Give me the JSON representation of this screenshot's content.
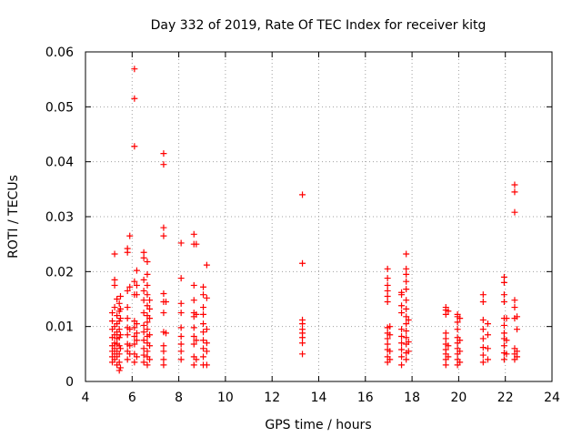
{
  "chart_data": {
    "type": "scatter",
    "title": "Day 332 of 2019, Rate Of TEC Index for receiver kitg",
    "xlabel": "GPS time / hours",
    "ylabel": "ROTI / TECUs",
    "xlim": [
      4,
      24
    ],
    "ylim": [
      0,
      0.06
    ],
    "x_ticks": [
      "4",
      "6",
      "8",
      "10",
      "12",
      "14",
      "16",
      "18",
      "20",
      "22",
      "24"
    ],
    "y_ticks": [
      "0",
      "0.01",
      "0.02",
      "0.03",
      "0.04",
      "0.05",
      "0.06"
    ],
    "grid": true,
    "marker": "+",
    "color": "#ff0000",
    "series": [
      {
        "name": "ROTI",
        "points": [
          [
            5.15,
            0.0035
          ],
          [
            5.15,
            0.0045
          ],
          [
            5.15,
            0.0055
          ],
          [
            5.15,
            0.0065
          ],
          [
            5.15,
            0.008
          ],
          [
            5.15,
            0.0095
          ],
          [
            5.15,
            0.011
          ],
          [
            5.15,
            0.0125
          ],
          [
            5.25,
            0.004
          ],
          [
            5.25,
            0.005
          ],
          [
            5.25,
            0.006
          ],
          [
            5.25,
            0.007
          ],
          [
            5.25,
            0.0085
          ],
          [
            5.25,
            0.01
          ],
          [
            5.25,
            0.0135
          ],
          [
            5.25,
            0.0175
          ],
          [
            5.25,
            0.0185
          ],
          [
            5.25,
            0.0232
          ],
          [
            5.35,
            0.003
          ],
          [
            5.35,
            0.0045
          ],
          [
            5.35,
            0.0055
          ],
          [
            5.35,
            0.0068
          ],
          [
            5.35,
            0.0078
          ],
          [
            5.35,
            0.009
          ],
          [
            5.35,
            0.0105
          ],
          [
            5.35,
            0.012
          ],
          [
            5.35,
            0.015
          ],
          [
            5.45,
            0.002
          ],
          [
            5.45,
            0.0035
          ],
          [
            5.45,
            0.005
          ],
          [
            5.45,
            0.0065
          ],
          [
            5.45,
            0.008
          ],
          [
            5.45,
            0.0095
          ],
          [
            5.45,
            0.011
          ],
          [
            5.45,
            0.0128
          ],
          [
            5.45,
            0.0142
          ],
          [
            5.5,
            0.0025
          ],
          [
            5.5,
            0.006
          ],
          [
            5.5,
            0.0085
          ],
          [
            5.5,
            0.0115
          ],
          [
            5.5,
            0.0132
          ],
          [
            5.5,
            0.0155
          ],
          [
            5.8,
            0.004
          ],
          [
            5.8,
            0.0055
          ],
          [
            5.8,
            0.0068
          ],
          [
            5.8,
            0.0085
          ],
          [
            5.8,
            0.0098
          ],
          [
            5.8,
            0.0115
          ],
          [
            5.8,
            0.0135
          ],
          [
            5.8,
            0.0165
          ],
          [
            5.8,
            0.0235
          ],
          [
            5.8,
            0.0242
          ],
          [
            5.9,
            0.005
          ],
          [
            5.9,
            0.0065
          ],
          [
            5.9,
            0.0095
          ],
          [
            5.9,
            0.0172
          ],
          [
            5.9,
            0.0265
          ],
          [
            6.1,
            0.0035
          ],
          [
            6.1,
            0.005
          ],
          [
            6.1,
            0.0068
          ],
          [
            6.1,
            0.0082
          ],
          [
            6.1,
            0.0098
          ],
          [
            6.1,
            0.011
          ],
          [
            6.1,
            0.0158
          ],
          [
            6.1,
            0.0182
          ],
          [
            6.1,
            0.0428
          ],
          [
            6.1,
            0.0515
          ],
          [
            6.1,
            0.0569
          ],
          [
            6.2,
            0.0045
          ],
          [
            6.2,
            0.0075
          ],
          [
            6.2,
            0.0088
          ],
          [
            6.2,
            0.0105
          ],
          [
            6.2,
            0.0158
          ],
          [
            6.2,
            0.0175
          ],
          [
            6.2,
            0.0202
          ],
          [
            6.5,
            0.0035
          ],
          [
            6.5,
            0.0048
          ],
          [
            6.5,
            0.006
          ],
          [
            6.5,
            0.0075
          ],
          [
            6.5,
            0.009
          ],
          [
            6.5,
            0.0102
          ],
          [
            6.5,
            0.0125
          ],
          [
            6.5,
            0.0148
          ],
          [
            6.5,
            0.0165
          ],
          [
            6.5,
            0.0185
          ],
          [
            6.5,
            0.0225
          ],
          [
            6.5,
            0.0235
          ],
          [
            6.65,
            0.003
          ],
          [
            6.65,
            0.0045
          ],
          [
            6.65,
            0.0055
          ],
          [
            6.65,
            0.007
          ],
          [
            6.65,
            0.0082
          ],
          [
            6.65,
            0.0095
          ],
          [
            6.65,
            0.0108
          ],
          [
            6.65,
            0.012
          ],
          [
            6.65,
            0.0138
          ],
          [
            6.65,
            0.0158
          ],
          [
            6.65,
            0.0175
          ],
          [
            6.65,
            0.0195
          ],
          [
            6.65,
            0.0218
          ],
          [
            6.75,
            0.004
          ],
          [
            6.75,
            0.0065
          ],
          [
            6.75,
            0.0085
          ],
          [
            6.75,
            0.0115
          ],
          [
            6.75,
            0.0132
          ],
          [
            6.75,
            0.0148
          ],
          [
            7.35,
            0.003
          ],
          [
            7.35,
            0.004
          ],
          [
            7.35,
            0.0055
          ],
          [
            7.35,
            0.0065
          ],
          [
            7.35,
            0.009
          ],
          [
            7.35,
            0.0125
          ],
          [
            7.35,
            0.0145
          ],
          [
            7.35,
            0.016
          ],
          [
            7.35,
            0.0265
          ],
          [
            7.35,
            0.028
          ],
          [
            7.35,
            0.0395
          ],
          [
            7.35,
            0.0415
          ],
          [
            7.45,
            0.0088
          ],
          [
            7.45,
            0.0145
          ],
          [
            8.1,
            0.004
          ],
          [
            8.1,
            0.0055
          ],
          [
            8.1,
            0.0068
          ],
          [
            8.1,
            0.0082
          ],
          [
            8.1,
            0.0098
          ],
          [
            8.1,
            0.0125
          ],
          [
            8.1,
            0.0142
          ],
          [
            8.1,
            0.0188
          ],
          [
            8.1,
            0.0252
          ],
          [
            8.65,
            0.003
          ],
          [
            8.65,
            0.0045
          ],
          [
            8.65,
            0.0068
          ],
          [
            8.65,
            0.0082
          ],
          [
            8.65,
            0.0098
          ],
          [
            8.65,
            0.0118
          ],
          [
            8.65,
            0.0125
          ],
          [
            8.65,
            0.0148
          ],
          [
            8.65,
            0.0175
          ],
          [
            8.65,
            0.025
          ],
          [
            8.65,
            0.0268
          ],
          [
            8.75,
            0.004
          ],
          [
            8.75,
            0.0075
          ],
          [
            8.75,
            0.0122
          ],
          [
            8.75,
            0.025
          ],
          [
            9.05,
            0.003
          ],
          [
            9.05,
            0.0045
          ],
          [
            9.05,
            0.006
          ],
          [
            9.05,
            0.0075
          ],
          [
            9.05,
            0.009
          ],
          [
            9.05,
            0.0105
          ],
          [
            9.05,
            0.0122
          ],
          [
            9.05,
            0.0135
          ],
          [
            9.05,
            0.0158
          ],
          [
            9.05,
            0.0172
          ],
          [
            9.2,
            0.003
          ],
          [
            9.2,
            0.0055
          ],
          [
            9.2,
            0.007
          ],
          [
            9.2,
            0.0095
          ],
          [
            9.2,
            0.0152
          ],
          [
            9.2,
            0.0212
          ],
          [
            13.3,
            0.005
          ],
          [
            13.3,
            0.007
          ],
          [
            13.3,
            0.008
          ],
          [
            13.3,
            0.0088
          ],
          [
            13.3,
            0.0095
          ],
          [
            13.3,
            0.0105
          ],
          [
            13.3,
            0.0112
          ],
          [
            13.3,
            0.0215
          ],
          [
            13.3,
            0.034
          ],
          [
            16.95,
            0.0035
          ],
          [
            16.95,
            0.0045
          ],
          [
            16.95,
            0.0058
          ],
          [
            16.95,
            0.0068
          ],
          [
            16.95,
            0.0078
          ],
          [
            16.95,
            0.0088
          ],
          [
            16.95,
            0.0098
          ],
          [
            16.95,
            0.0145
          ],
          [
            16.95,
            0.0155
          ],
          [
            16.95,
            0.0165
          ],
          [
            16.95,
            0.0175
          ],
          [
            16.95,
            0.0188
          ],
          [
            16.95,
            0.0205
          ],
          [
            17.05,
            0.004
          ],
          [
            17.05,
            0.0055
          ],
          [
            17.05,
            0.0085
          ],
          [
            17.05,
            0.01
          ],
          [
            17.55,
            0.003
          ],
          [
            17.55,
            0.0045
          ],
          [
            17.55,
            0.0058
          ],
          [
            17.55,
            0.007
          ],
          [
            17.55,
            0.0082
          ],
          [
            17.55,
            0.0095
          ],
          [
            17.55,
            0.0125
          ],
          [
            17.55,
            0.0138
          ],
          [
            17.55,
            0.0158
          ],
          [
            17.55,
            0.0162
          ],
          [
            17.75,
            0.004
          ],
          [
            17.75,
            0.0052
          ],
          [
            17.75,
            0.0068
          ],
          [
            17.75,
            0.008
          ],
          [
            17.75,
            0.0092
          ],
          [
            17.75,
            0.0105
          ],
          [
            17.75,
            0.0118
          ],
          [
            17.75,
            0.0132
          ],
          [
            17.75,
            0.0148
          ],
          [
            17.75,
            0.0168
          ],
          [
            17.75,
            0.0182
          ],
          [
            17.75,
            0.0195
          ],
          [
            17.75,
            0.0205
          ],
          [
            17.75,
            0.0232
          ],
          [
            17.85,
            0.0055
          ],
          [
            17.85,
            0.0072
          ],
          [
            17.85,
            0.0112
          ],
          [
            19.45,
            0.003
          ],
          [
            19.45,
            0.004
          ],
          [
            19.45,
            0.005
          ],
          [
            19.45,
            0.0058
          ],
          [
            19.45,
            0.0068
          ],
          [
            19.45,
            0.0078
          ],
          [
            19.45,
            0.0088
          ],
          [
            19.45,
            0.0122
          ],
          [
            19.45,
            0.013
          ],
          [
            19.45,
            0.0135
          ],
          [
            19.55,
            0.0045
          ],
          [
            19.55,
            0.0065
          ],
          [
            19.55,
            0.0128
          ],
          [
            19.95,
            0.003
          ],
          [
            19.95,
            0.004
          ],
          [
            19.95,
            0.005
          ],
          [
            19.95,
            0.006
          ],
          [
            19.95,
            0.007
          ],
          [
            19.95,
            0.008
          ],
          [
            19.95,
            0.0095
          ],
          [
            19.95,
            0.0108
          ],
          [
            19.95,
            0.0118
          ],
          [
            19.95,
            0.0122
          ],
          [
            20.05,
            0.0035
          ],
          [
            20.05,
            0.0055
          ],
          [
            20.05,
            0.0075
          ],
          [
            20.05,
            0.0115
          ],
          [
            21.05,
            0.0035
          ],
          [
            21.05,
            0.0048
          ],
          [
            21.05,
            0.0062
          ],
          [
            21.05,
            0.0078
          ],
          [
            21.05,
            0.0095
          ],
          [
            21.05,
            0.0112
          ],
          [
            21.05,
            0.0145
          ],
          [
            21.05,
            0.0158
          ],
          [
            21.25,
            0.004
          ],
          [
            21.25,
            0.006
          ],
          [
            21.25,
            0.0085
          ],
          [
            21.25,
            0.0105
          ],
          [
            21.95,
            0.004
          ],
          [
            21.95,
            0.0052
          ],
          [
            21.95,
            0.0065
          ],
          [
            21.95,
            0.0078
          ],
          [
            21.95,
            0.0088
          ],
          [
            21.95,
            0.0102
          ],
          [
            21.95,
            0.0115
          ],
          [
            21.95,
            0.0145
          ],
          [
            21.95,
            0.0158
          ],
          [
            21.95,
            0.018
          ],
          [
            21.95,
            0.019
          ],
          [
            22.05,
            0.005
          ],
          [
            22.05,
            0.0075
          ],
          [
            22.05,
            0.0115
          ],
          [
            22.4,
            0.004
          ],
          [
            22.4,
            0.005
          ],
          [
            22.4,
            0.006
          ],
          [
            22.4,
            0.0115
          ],
          [
            22.4,
            0.0135
          ],
          [
            22.4,
            0.0148
          ],
          [
            22.4,
            0.0308
          ],
          [
            22.4,
            0.0345
          ],
          [
            22.4,
            0.0358
          ],
          [
            22.5,
            0.0045
          ],
          [
            22.5,
            0.0055
          ],
          [
            22.5,
            0.0095
          ],
          [
            22.5,
            0.0118
          ]
        ]
      }
    ]
  }
}
